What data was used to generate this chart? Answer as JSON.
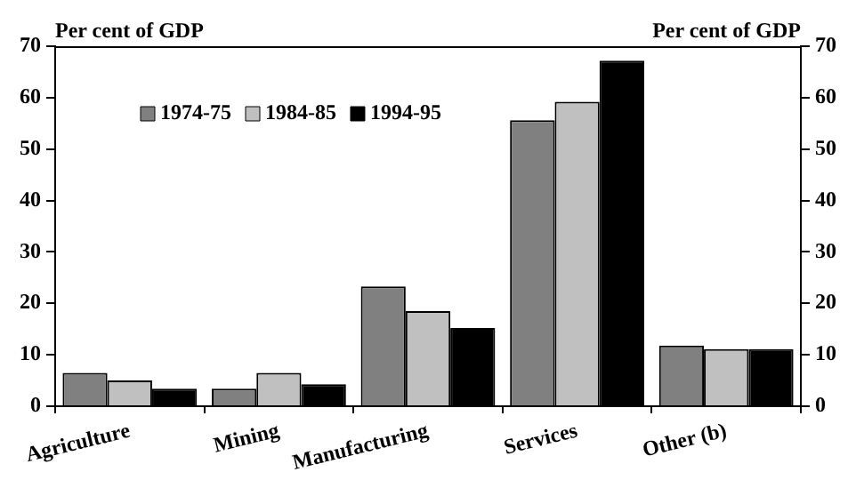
{
  "chart_data": {
    "type": "bar",
    "categories": [
      "Agriculture",
      "Mining",
      "Manufacturing",
      "Services",
      "Other (b)"
    ],
    "series": [
      {
        "name": "1974-75",
        "color": "#808080",
        "values": [
          6.5,
          3.4,
          23.3,
          55.6,
          11.8
        ]
      },
      {
        "name": "1984-85",
        "color": "#c0c0c0",
        "values": [
          5.0,
          6.5,
          18.5,
          59.2,
          11.1
        ]
      },
      {
        "name": "1994-95",
        "color": "#000000",
        "values": [
          3.4,
          4.3,
          15.2,
          67.2,
          11.1
        ]
      }
    ],
    "ylabel": "Per cent of GDP",
    "y2label": "Per cent of GDP",
    "ylim": [
      0,
      70
    ],
    "yticks": [
      0,
      10,
      20,
      30,
      40,
      50,
      60,
      70
    ],
    "y2lim": [
      0,
      70
    ],
    "y2ticks": [
      0,
      10,
      20,
      30,
      40,
      50,
      60,
      70
    ],
    "grid": false,
    "legend": "top left"
  }
}
